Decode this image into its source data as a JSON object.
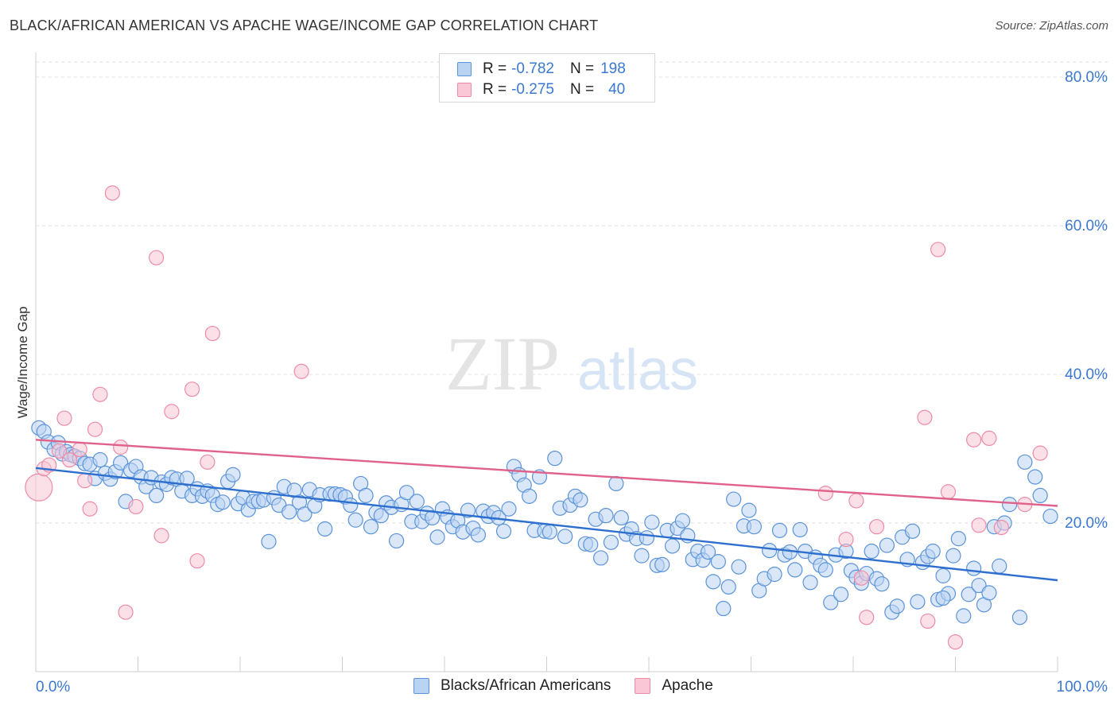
{
  "header": {
    "title": "BLACK/AFRICAN AMERICAN VS APACHE WAGE/INCOME GAP CORRELATION CHART",
    "source": "Source: ZipAtlas.com"
  },
  "legend": {
    "rows": [
      {
        "r_label": "R = ",
        "r_value": "-0.782",
        "n_label": "N = ",
        "n_value": "198"
      },
      {
        "r_label": "R = ",
        "r_value": "-0.275",
        "n_label": "N = ",
        "n_value": "40"
      }
    ],
    "bottom": [
      "Blacks/African Americans",
      "Apache"
    ]
  },
  "watermark": {
    "zip": "ZIP",
    "atlas": "atlas"
  },
  "colors": {
    "blue_fill": "#b9d3f3",
    "blue_stroke": "#5b93d9",
    "blue_line": "#2d6fcf",
    "pink_fill": "#f9c7d6",
    "pink_stroke": "#ec8ba8",
    "pink_line": "#e0628a",
    "tick_label": "#3b78d0",
    "grid": "#e2e2e2"
  },
  "chart_data": {
    "type": "scatter",
    "title": "BLACK/AFRICAN AMERICAN VS APACHE WAGE/INCOME GAP CORRELATION CHART",
    "xlabel": "",
    "ylabel": "Wage/Income Gap",
    "xlim": [
      0,
      100
    ],
    "ylim": [
      0,
      80
    ],
    "x_tick_labels": [
      "0.0%",
      "100.0%"
    ],
    "y_ticks": [
      20,
      40,
      60,
      80
    ],
    "y_tick_labels": [
      "20.0%",
      "40.0%",
      "60.0%",
      "80.0%"
    ],
    "grid": true,
    "legend_position": "top-center",
    "series": [
      {
        "name": "Blacks/African Americans",
        "color": "blue",
        "trend": {
          "x": [
            0,
            100
          ],
          "y": [
            27.4,
            12.3
          ]
        },
        "points": [
          [
            0.3,
            32.8
          ],
          [
            0.8,
            32.3
          ],
          [
            1.2,
            30.9
          ],
          [
            1.8,
            29.9
          ],
          [
            2.2,
            30.8
          ],
          [
            2.6,
            29.3
          ],
          [
            3.0,
            29.6
          ],
          [
            3.4,
            29.2
          ],
          [
            3.8,
            29.0
          ],
          [
            4.3,
            28.7
          ],
          [
            4.8,
            28.0
          ],
          [
            5.3,
            27.9
          ],
          [
            5.8,
            26.0
          ],
          [
            6.3,
            28.5
          ],
          [
            6.8,
            26.7
          ],
          [
            7.3,
            25.9
          ],
          [
            7.8,
            26.9
          ],
          [
            8.3,
            28.1
          ],
          [
            8.8,
            22.9
          ],
          [
            9.3,
            27.1
          ],
          [
            9.8,
            27.6
          ],
          [
            10.3,
            26.2
          ],
          [
            10.8,
            24.9
          ],
          [
            11.3,
            26.1
          ],
          [
            11.8,
            23.7
          ],
          [
            12.3,
            25.5
          ],
          [
            12.8,
            25.2
          ],
          [
            13.3,
            26.1
          ],
          [
            13.8,
            25.9
          ],
          [
            14.3,
            24.3
          ],
          [
            14.8,
            26.0
          ],
          [
            15.3,
            23.7
          ],
          [
            15.8,
            24.6
          ],
          [
            16.3,
            23.6
          ],
          [
            16.8,
            24.3
          ],
          [
            17.3,
            23.7
          ],
          [
            17.8,
            22.5
          ],
          [
            18.3,
            22.8
          ],
          [
            18.8,
            25.6
          ],
          [
            19.3,
            26.5
          ],
          [
            19.8,
            22.6
          ],
          [
            20.3,
            23.4
          ],
          [
            20.8,
            21.8
          ],
          [
            21.3,
            22.9
          ],
          [
            21.8,
            22.9
          ],
          [
            22.3,
            23.1
          ],
          [
            22.8,
            17.5
          ],
          [
            23.3,
            23.4
          ],
          [
            23.8,
            22.4
          ],
          [
            24.3,
            24.9
          ],
          [
            24.8,
            21.5
          ],
          [
            25.3,
            24.4
          ],
          [
            25.8,
            22.8
          ],
          [
            26.3,
            21.2
          ],
          [
            26.8,
            24.5
          ],
          [
            27.3,
            22.3
          ],
          [
            27.8,
            23.8
          ],
          [
            28.3,
            19.2
          ],
          [
            28.8,
            23.9
          ],
          [
            29.3,
            23.9
          ],
          [
            29.8,
            23.8
          ],
          [
            30.3,
            23.5
          ],
          [
            30.8,
            22.4
          ],
          [
            31.3,
            20.4
          ],
          [
            31.8,
            25.3
          ],
          [
            32.3,
            23.7
          ],
          [
            32.8,
            19.5
          ],
          [
            33.3,
            21.4
          ],
          [
            33.8,
            21.0
          ],
          [
            34.3,
            22.7
          ],
          [
            34.8,
            22.1
          ],
          [
            35.3,
            17.6
          ],
          [
            35.8,
            22.5
          ],
          [
            36.3,
            24.1
          ],
          [
            36.8,
            20.2
          ],
          [
            37.3,
            22.9
          ],
          [
            37.8,
            20.2
          ],
          [
            38.3,
            21.3
          ],
          [
            38.8,
            20.7
          ],
          [
            39.3,
            18.1
          ],
          [
            39.8,
            21.9
          ],
          [
            40.3,
            20.8
          ],
          [
            40.8,
            19.5
          ],
          [
            41.3,
            20.3
          ],
          [
            41.8,
            18.8
          ],
          [
            42.3,
            21.7
          ],
          [
            42.8,
            19.3
          ],
          [
            43.3,
            18.4
          ],
          [
            43.8,
            21.6
          ],
          [
            44.3,
            20.9
          ],
          [
            44.8,
            21.4
          ],
          [
            45.3,
            20.7
          ],
          [
            45.8,
            18.9
          ],
          [
            46.3,
            21.9
          ],
          [
            46.8,
            27.6
          ],
          [
            47.3,
            26.5
          ],
          [
            47.8,
            25.1
          ],
          [
            48.3,
            23.6
          ],
          [
            48.8,
            19.0
          ],
          [
            49.3,
            26.2
          ],
          [
            49.8,
            18.9
          ],
          [
            50.3,
            18.8
          ],
          [
            50.8,
            28.7
          ],
          [
            51.3,
            22.0
          ],
          [
            51.8,
            18.2
          ],
          [
            52.3,
            22.4
          ],
          [
            52.8,
            23.6
          ],
          [
            53.3,
            23.1
          ],
          [
            53.8,
            17.2
          ],
          [
            54.3,
            17.1
          ],
          [
            54.8,
            20.5
          ],
          [
            55.3,
            15.3
          ],
          [
            55.8,
            21.0
          ],
          [
            56.3,
            17.4
          ],
          [
            56.8,
            25.3
          ],
          [
            57.3,
            20.7
          ],
          [
            57.8,
            18.5
          ],
          [
            58.3,
            19.2
          ],
          [
            58.8,
            17.9
          ],
          [
            59.3,
            15.6
          ],
          [
            59.8,
            18.0
          ],
          [
            60.3,
            20.1
          ],
          [
            60.8,
            14.3
          ],
          [
            61.3,
            14.4
          ],
          [
            61.8,
            19.0
          ],
          [
            62.3,
            16.9
          ],
          [
            62.8,
            19.3
          ],
          [
            63.3,
            20.3
          ],
          [
            63.8,
            18.3
          ],
          [
            64.3,
            15.1
          ],
          [
            64.8,
            16.2
          ],
          [
            65.3,
            15.0
          ],
          [
            65.8,
            16.1
          ],
          [
            66.3,
            12.1
          ],
          [
            66.8,
            14.8
          ],
          [
            67.3,
            8.5
          ],
          [
            67.8,
            11.4
          ],
          [
            68.3,
            23.2
          ],
          [
            68.8,
            14.1
          ],
          [
            69.3,
            19.6
          ],
          [
            69.8,
            21.7
          ],
          [
            70.3,
            19.5
          ],
          [
            70.8,
            10.9
          ],
          [
            71.3,
            12.5
          ],
          [
            71.8,
            16.3
          ],
          [
            72.3,
            13.1
          ],
          [
            72.8,
            19.0
          ],
          [
            73.3,
            15.7
          ],
          [
            73.8,
            16.1
          ],
          [
            74.3,
            13.7
          ],
          [
            74.8,
            19.1
          ],
          [
            75.3,
            16.2
          ],
          [
            75.8,
            12.0
          ],
          [
            76.3,
            15.4
          ],
          [
            76.8,
            14.3
          ],
          [
            77.3,
            13.7
          ],
          [
            77.8,
            9.3
          ],
          [
            78.3,
            15.7
          ],
          [
            78.8,
            10.4
          ],
          [
            79.3,
            16.2
          ],
          [
            79.8,
            13.6
          ],
          [
            80.3,
            12.7
          ],
          [
            80.8,
            11.9
          ],
          [
            81.3,
            13.2
          ],
          [
            81.8,
            16.2
          ],
          [
            82.3,
            12.5
          ],
          [
            82.8,
            11.8
          ],
          [
            83.3,
            17.0
          ],
          [
            83.8,
            8.0
          ],
          [
            84.3,
            8.8
          ],
          [
            84.8,
            18.1
          ],
          [
            85.3,
            15.1
          ],
          [
            85.8,
            18.9
          ],
          [
            86.3,
            9.4
          ],
          [
            86.8,
            14.7
          ],
          [
            87.3,
            15.5
          ],
          [
            87.8,
            16.2
          ],
          [
            88.3,
            9.7
          ],
          [
            88.8,
            12.9
          ],
          [
            89.3,
            10.5
          ],
          [
            89.8,
            15.6
          ],
          [
            90.3,
            17.9
          ],
          [
            90.8,
            7.5
          ],
          [
            91.3,
            10.4
          ],
          [
            91.8,
            13.9
          ],
          [
            92.3,
            11.6
          ],
          [
            92.8,
            9.0
          ],
          [
            93.3,
            10.6
          ],
          [
            93.8,
            19.5
          ],
          [
            94.3,
            14.2
          ],
          [
            94.8,
            20.0
          ],
          [
            95.3,
            22.5
          ],
          [
            96.3,
            7.3
          ],
          [
            96.8,
            28.2
          ],
          [
            97.8,
            26.2
          ],
          [
            98.3,
            23.7
          ],
          [
            99.3,
            20.9
          ],
          [
            88.8,
            9.9
          ]
        ]
      },
      {
        "name": "Apache",
        "color": "pink",
        "trend": {
          "x": [
            0,
            100
          ],
          "y": [
            31.2,
            22.3
          ]
        },
        "points": [
          [
            0.3,
            24.8
          ],
          [
            0.8,
            27.3
          ],
          [
            1.3,
            27.8
          ],
          [
            2.3,
            29.7
          ],
          [
            2.8,
            34.1
          ],
          [
            3.3,
            28.5
          ],
          [
            4.3,
            29.9
          ],
          [
            4.8,
            25.7
          ],
          [
            5.3,
            21.9
          ],
          [
            5.8,
            32.6
          ],
          [
            6.3,
            37.3
          ],
          [
            7.5,
            64.4
          ],
          [
            8.3,
            30.2
          ],
          [
            8.8,
            8.0
          ],
          [
            9.8,
            22.2
          ],
          [
            11.8,
            55.7
          ],
          [
            12.3,
            18.3
          ],
          [
            13.3,
            35.0
          ],
          [
            15.3,
            38.0
          ],
          [
            15.8,
            14.9
          ],
          [
            16.8,
            28.2
          ],
          [
            17.3,
            45.5
          ],
          [
            26.0,
            40.4
          ],
          [
            77.3,
            24.0
          ],
          [
            79.3,
            17.8
          ],
          [
            80.3,
            23.0
          ],
          [
            80.8,
            12.6
          ],
          [
            81.3,
            7.3
          ],
          [
            82.3,
            19.5
          ],
          [
            87.0,
            34.2
          ],
          [
            87.3,
            6.8
          ],
          [
            88.3,
            56.8
          ],
          [
            89.3,
            24.2
          ],
          [
            90.0,
            4.0
          ],
          [
            91.8,
            31.2
          ],
          [
            92.3,
            19.7
          ],
          [
            93.3,
            31.4
          ],
          [
            94.5,
            19.4
          ],
          [
            98.3,
            29.4
          ],
          [
            96.8,
            22.5
          ]
        ]
      }
    ]
  }
}
